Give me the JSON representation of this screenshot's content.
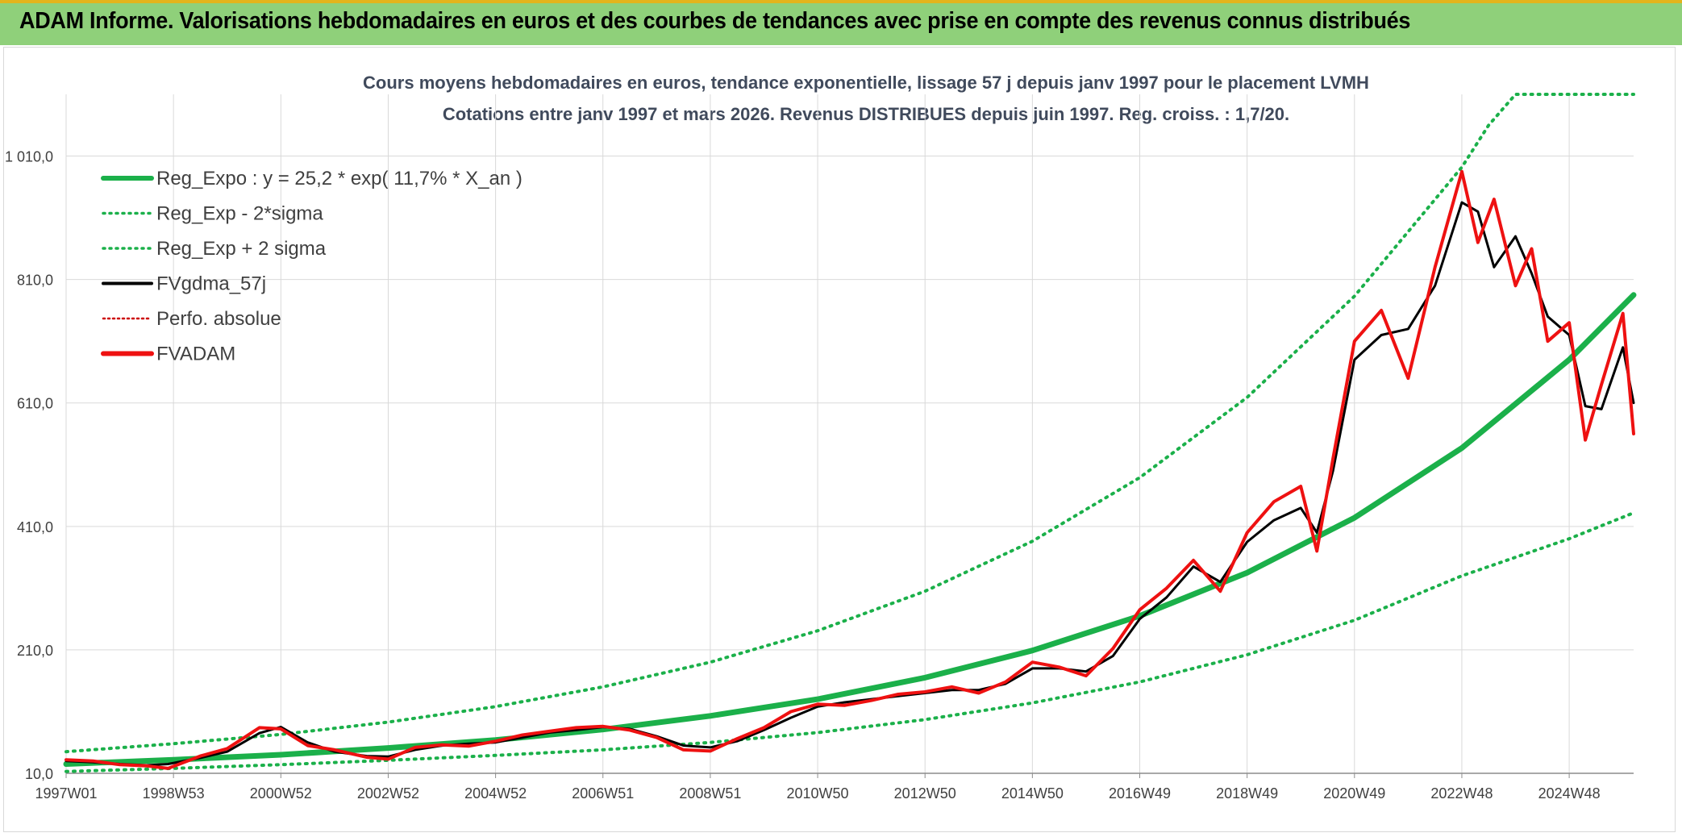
{
  "banner": {
    "title": "ADAM Informe. Valorisations hebdomadaires en euros et des courbes de tendances avec prise en compte des revenus connus distribués"
  },
  "colors": {
    "banner_bg": "#8fd07a",
    "banner_accent": "#e3b41c",
    "reg_expo": "#1bb04a",
    "fvgdma": "#000000",
    "fvadam": "#ee1111",
    "perfo": "#cc0000",
    "title_text": "#404a5c",
    "grid": "#d9d9d9"
  },
  "chart_data": {
    "type": "line",
    "title": "Cours moyens hebdomadaires en euros, tendance exponentielle, lissage 57 j depuis janv 1997 pour le placement LVMH",
    "subtitle": "Cotations entre janv 1997 et mars 2026. Revenus DISTRIBUES depuis juin 1997. Reg. croiss. : 1,7/20.",
    "xlabel": "",
    "ylabel": "",
    "ylim": [
      10,
      1110
    ],
    "xlim": [
      1997.0,
      2026.2
    ],
    "y_ticks": [
      "10,0",
      "210,0",
      "410,0",
      "610,0",
      "810,0",
      "1 010,0"
    ],
    "y_tick_values": [
      10,
      210,
      410,
      610,
      810,
      1010
    ],
    "x_tick_labels": [
      "1997W01",
      "1998W53",
      "2000W52",
      "2002W52",
      "2004W52",
      "2006W51",
      "2008W51",
      "2010W50",
      "2012W50",
      "2014W50",
      "2016W49",
      "2018W49",
      "2020W49",
      "2022W48",
      "2024W48"
    ],
    "x_tick_positions": [
      1997.0,
      1999.0,
      2001.0,
      2003.0,
      2005.0,
      2007.0,
      2009.0,
      2011.0,
      2013.0,
      2015.0,
      2017.0,
      2019.0,
      2021.0,
      2023.0,
      2025.0
    ],
    "grid": true,
    "legend_placement": "top-left",
    "legend": [
      {
        "name": "Reg_Expo : y = 25,2 * exp( 11,7% *  X_an )",
        "style": "solid-thick",
        "color": "#1bb04a"
      },
      {
        "name": "Reg_Exp - 2*sigma",
        "style": "dotted",
        "color": "#1bb04a"
      },
      {
        "name": "Reg_Exp + 2 sigma",
        "style": "dotted",
        "color": "#1bb04a"
      },
      {
        "name": "FVgdma_57j",
        "style": "solid",
        "color": "#000000"
      },
      {
        "name": "Perfo. absolue",
        "style": "dotted-thin",
        "color": "#cc0000"
      },
      {
        "name": "FVADAM",
        "style": "solid-thick",
        "color": "#ee1111"
      }
    ],
    "series": [
      {
        "name": "Reg_Expo : y = 25,2 * exp( 11,7% *  X_an )",
        "x": [
          1997.0,
          1999.0,
          2001.0,
          2003.0,
          2005.0,
          2007.0,
          2009.0,
          2011.0,
          2013.0,
          2015.0,
          2017.0,
          2019.0,
          2021.0,
          2023.0,
          2025.0,
          2026.2
        ],
        "values": [
          25,
          32,
          40,
          51,
          64,
          81,
          103,
          130,
          165,
          209,
          265,
          335,
          424,
          537,
          680,
          785
        ]
      },
      {
        "name": "Reg_Exp - 2*sigma",
        "x": [
          1997.0,
          1999.0,
          2001.0,
          2003.0,
          2005.0,
          2007.0,
          2009.0,
          2011.0,
          2013.0,
          2015.0,
          2017.0,
          2019.0,
          2021.0,
          2023.0,
          2025.0,
          2026.2
        ],
        "values": [
          13,
          18,
          24,
          31,
          39,
          48,
          60,
          76,
          97,
          124,
          158,
          202,
          258,
          330,
          390,
          432
        ]
      },
      {
        "name": "Reg_Exp + 2 sigma",
        "x": [
          1997.0,
          1999.0,
          2001.0,
          2003.0,
          2005.0,
          2007.0,
          2009.0,
          2011.0,
          2013.0,
          2015.0,
          2017.0,
          2019.0,
          2021.0,
          2023.0,
          2023.5,
          2024.0,
          2026.2
        ],
        "values": [
          45,
          58,
          73,
          93,
          118,
          150,
          190,
          241,
          305,
          386,
          489,
          619,
          783,
          992,
          1060,
          1110,
          1110
        ]
      },
      {
        "name": "FVgdma_57j",
        "x": [
          1997.0,
          1997.5,
          1998.0,
          1998.5,
          1998.9,
          1999.5,
          2000.0,
          2000.6,
          2001.0,
          2001.5,
          2002.0,
          2002.6,
          2003.0,
          2003.5,
          2004.0,
          2004.5,
          2005.0,
          2005.5,
          2006.0,
          2006.5,
          2007.0,
          2007.5,
          2008.0,
          2008.5,
          2009.0,
          2009.5,
          2010.0,
          2010.5,
          2011.0,
          2011.5,
          2012.0,
          2012.5,
          2013.0,
          2013.5,
          2014.0,
          2014.5,
          2015.0,
          2015.5,
          2016.0,
          2016.5,
          2017.0,
          2017.5,
          2018.0,
          2018.5,
          2019.0,
          2019.5,
          2020.0,
          2020.3,
          2020.6,
          2021.0,
          2021.5,
          2022.0,
          2022.5,
          2023.0,
          2023.3,
          2023.6,
          2024.0,
          2024.3,
          2024.6,
          2025.0,
          2025.3,
          2025.6,
          2026.0,
          2026.2
        ],
        "values": [
          30,
          28,
          25,
          23,
          25,
          35,
          45,
          75,
          85,
          60,
          45,
          38,
          37,
          48,
          55,
          58,
          60,
          68,
          76,
          80,
          85,
          82,
          70,
          55,
          52,
          62,
          80,
          100,
          118,
          125,
          130,
          135,
          140,
          145,
          145,
          155,
          180,
          180,
          175,
          200,
          260,
          295,
          345,
          320,
          385,
          420,
          440,
          400,
          500,
          680,
          720,
          730,
          800,
          935,
          920,
          830,
          880,
          820,
          750,
          720,
          605,
          600,
          700,
          610
        ]
      },
      {
        "name": "FVADAM",
        "x": [
          1997.0,
          1997.5,
          1998.0,
          1998.5,
          1998.9,
          1999.5,
          2000.0,
          2000.6,
          2001.0,
          2001.5,
          2002.0,
          2002.6,
          2003.0,
          2003.5,
          2004.0,
          2004.5,
          2005.0,
          2005.5,
          2006.0,
          2006.5,
          2007.0,
          2007.5,
          2008.0,
          2008.5,
          2009.0,
          2009.5,
          2010.0,
          2010.5,
          2011.0,
          2011.5,
          2012.0,
          2012.5,
          2013.0,
          2013.5,
          2014.0,
          2014.5,
          2015.0,
          2015.5,
          2016.0,
          2016.5,
          2017.0,
          2017.5,
          2018.0,
          2018.5,
          2019.0,
          2019.5,
          2020.0,
          2020.3,
          2020.6,
          2021.0,
          2021.5,
          2022.0,
          2022.5,
          2023.0,
          2023.3,
          2023.6,
          2024.0,
          2024.3,
          2024.6,
          2025.0,
          2025.3,
          2025.6,
          2026.0,
          2026.2
        ],
        "values": [
          32,
          30,
          24,
          22,
          18,
          38,
          50,
          84,
          82,
          55,
          48,
          36,
          33,
          52,
          56,
          54,
          62,
          72,
          78,
          84,
          86,
          80,
          68,
          48,
          46,
          66,
          84,
          110,
          122,
          120,
          128,
          138,
          142,
          150,
          140,
          158,
          190,
          182,
          168,
          212,
          275,
          310,
          355,
          305,
          400,
          450,
          475,
          370,
          520,
          710,
          760,
          650,
          830,
          985,
          870,
          940,
          800,
          860,
          710,
          740,
          550,
          640,
          755,
          560
        ]
      }
    ]
  }
}
